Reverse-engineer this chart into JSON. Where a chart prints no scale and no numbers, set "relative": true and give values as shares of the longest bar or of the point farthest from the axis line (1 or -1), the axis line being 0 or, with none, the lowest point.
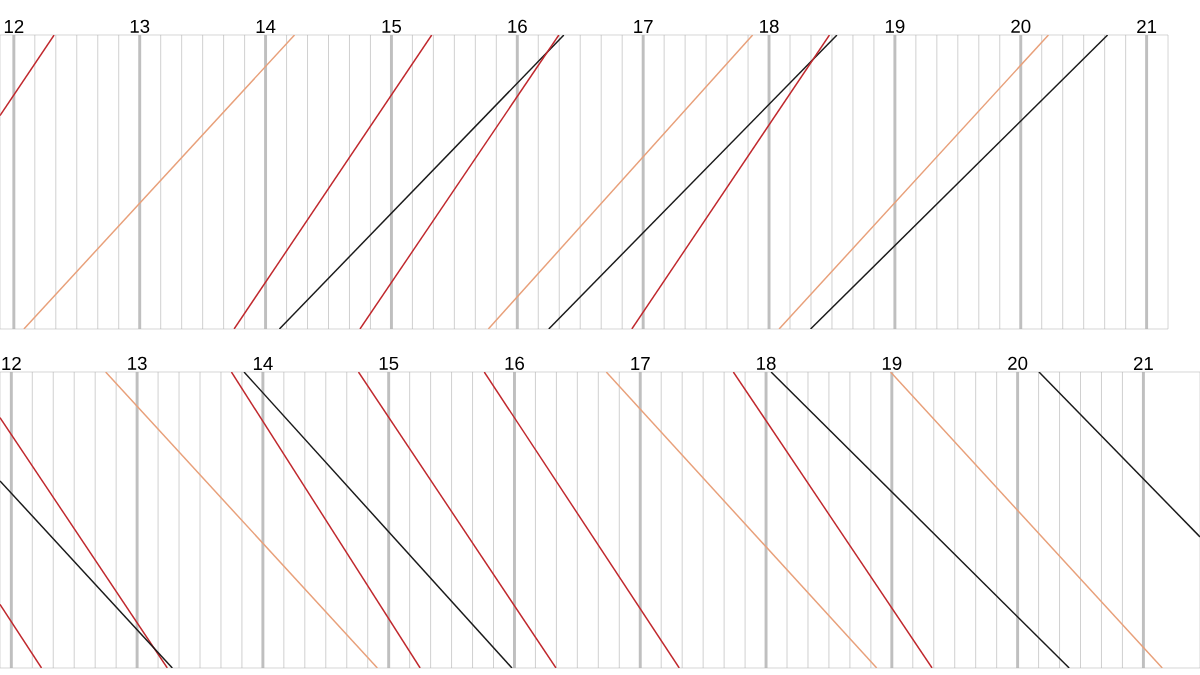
{
  "chart_data": [
    {
      "type": "line",
      "relative": true,
      "xlim": [
        11.89,
        21.17
      ],
      "xticks": [
        12,
        13,
        14,
        15,
        16,
        17,
        18,
        19,
        20,
        21
      ],
      "grid": "x",
      "tick_labels": "x",
      "series": [
        {
          "color": "#c0282d",
          "x": [
            11.89,
            12.32
          ],
          "values": [
            0.726,
            1
          ]
        },
        {
          "color": "#e8a07a",
          "x": [
            12.08,
            14.23
          ],
          "values": [
            0,
            1
          ]
        },
        {
          "color": "#c0282d",
          "x": [
            13.75,
            15.32
          ],
          "values": [
            0,
            1
          ]
        },
        {
          "color": "#1a1a1a",
          "x": [
            14.11,
            16.37
          ],
          "values": [
            0,
            1
          ]
        },
        {
          "color": "#c0282d",
          "x": [
            14.75,
            16.33
          ],
          "values": [
            0,
            1
          ]
        },
        {
          "color": "#e8a07a",
          "x": [
            15.77,
            17.87
          ],
          "values": [
            0,
            1
          ]
        },
        {
          "color": "#1a1a1a",
          "x": [
            16.25,
            18.54
          ],
          "values": [
            0,
            1
          ]
        },
        {
          "color": "#c0282d",
          "x": [
            16.91,
            18.48
          ],
          "values": [
            0,
            1
          ]
        },
        {
          "color": "#e8a07a",
          "x": [
            18.08,
            20.22
          ],
          "values": [
            0,
            1
          ]
        },
        {
          "color": "#1a1a1a",
          "x": [
            18.33,
            20.69
          ],
          "values": [
            0,
            1
          ]
        }
      ]
    },
    {
      "type": "line",
      "relative": true,
      "xlim": [
        11.91,
        21.45
      ],
      "xticks": [
        12,
        13,
        14,
        15,
        16,
        17,
        18,
        19,
        20,
        21
      ],
      "grid": "x",
      "tick_labels": "x",
      "series": [
        {
          "color": "#c0282d",
          "x": [
            11.91,
            12.24
          ],
          "values": [
            0.215,
            0
          ]
        },
        {
          "color": "#c0282d",
          "x": [
            11.91,
            13.24
          ],
          "values": [
            0.846,
            0
          ]
        },
        {
          "color": "#1a1a1a",
          "x": [
            11.91,
            13.28
          ],
          "values": [
            0.632,
            0
          ]
        },
        {
          "color": "#e8a07a",
          "x": [
            12.75,
            14.91
          ],
          "values": [
            1,
            0
          ]
        },
        {
          "color": "#c0282d",
          "x": [
            13.75,
            15.25
          ],
          "values": [
            1,
            0
          ]
        },
        {
          "color": "#1a1a1a",
          "x": [
            13.85,
            15.98
          ],
          "values": [
            1,
            0
          ]
        },
        {
          "color": "#c0282d",
          "x": [
            14.76,
            16.33
          ],
          "values": [
            1,
            0
          ]
        },
        {
          "color": "#c0282d",
          "x": [
            15.76,
            17.31
          ],
          "values": [
            1,
            0
          ]
        },
        {
          "color": "#e8a07a",
          "x": [
            16.73,
            18.88
          ],
          "values": [
            1,
            0
          ]
        },
        {
          "color": "#c0282d",
          "x": [
            17.74,
            19.32
          ],
          "values": [
            1,
            0
          ]
        },
        {
          "color": "#1a1a1a",
          "x": [
            18.04,
            20.41
          ],
          "values": [
            1,
            0
          ]
        },
        {
          "color": "#e8a07a",
          "x": [
            18.99,
            21.15
          ],
          "values": [
            1,
            0
          ]
        },
        {
          "color": "#1a1a1a",
          "x": [
            20.17,
            21.45
          ],
          "values": [
            1,
            0.443
          ]
        }
      ]
    }
  ]
}
